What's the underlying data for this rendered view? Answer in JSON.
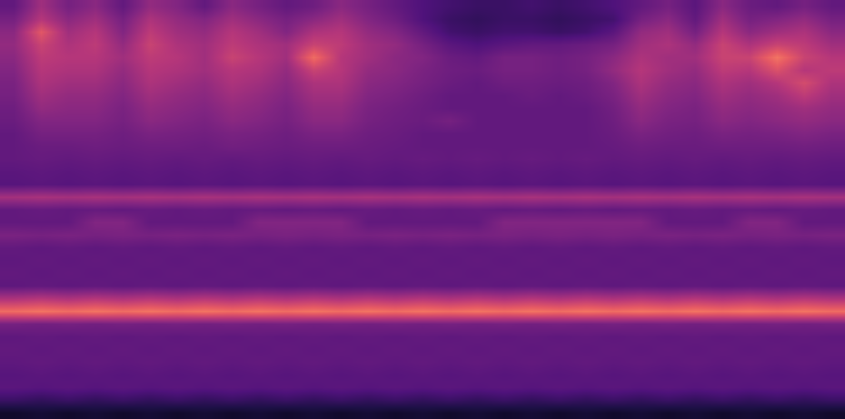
{
  "chart_data": {
    "type": "heatmap",
    "tick_labels": false,
    "zlim": [
      0,
      1
    ],
    "cells": [
      [
        0.3,
        0.45,
        0.35,
        0.4,
        0.3,
        0.42,
        0.38,
        0.3,
        0.4,
        0.35,
        0.3,
        0.33,
        0.4,
        0.35,
        0.3,
        0.25,
        0.22,
        0.2,
        0.2,
        0.22,
        0.2,
        0.22,
        0.25,
        0.3,
        0.35,
        0.28,
        0.4,
        0.32,
        0.3,
        0.35,
        0.3
      ],
      [
        0.35,
        0.5,
        0.4,
        0.45,
        0.35,
        0.48,
        0.42,
        0.38,
        0.45,
        0.4,
        0.35,
        0.4,
        0.45,
        0.38,
        0.33,
        0.25,
        0.2,
        0.18,
        0.2,
        0.2,
        0.18,
        0.2,
        0.22,
        0.35,
        0.4,
        0.3,
        0.45,
        0.35,
        0.38,
        0.42,
        0.35
      ],
      [
        0.4,
        0.62,
        0.45,
        0.5,
        0.38,
        0.52,
        0.45,
        0.42,
        0.5,
        0.45,
        0.38,
        0.48,
        0.5,
        0.42,
        0.38,
        0.3,
        0.22,
        0.2,
        0.22,
        0.22,
        0.2,
        0.22,
        0.28,
        0.42,
        0.45,
        0.35,
        0.5,
        0.4,
        0.45,
        0.48,
        0.4
      ],
      [
        0.42,
        0.55,
        0.48,
        0.52,
        0.42,
        0.55,
        0.48,
        0.45,
        0.52,
        0.48,
        0.45,
        0.55,
        0.52,
        0.45,
        0.42,
        0.35,
        0.28,
        0.25,
        0.28,
        0.3,
        0.3,
        0.32,
        0.35,
        0.45,
        0.48,
        0.42,
        0.55,
        0.48,
        0.55,
        0.52,
        0.45
      ],
      [
        0.4,
        0.52,
        0.5,
        0.5,
        0.45,
        0.52,
        0.5,
        0.45,
        0.55,
        0.5,
        0.45,
        0.68,
        0.5,
        0.45,
        0.4,
        0.38,
        0.32,
        0.3,
        0.35,
        0.35,
        0.33,
        0.35,
        0.4,
        0.48,
        0.45,
        0.45,
        0.55,
        0.55,
        0.7,
        0.55,
        0.5
      ],
      [
        0.38,
        0.5,
        0.48,
        0.48,
        0.42,
        0.5,
        0.48,
        0.45,
        0.5,
        0.48,
        0.42,
        0.55,
        0.5,
        0.42,
        0.4,
        0.36,
        0.33,
        0.32,
        0.35,
        0.35,
        0.33,
        0.35,
        0.42,
        0.5,
        0.45,
        0.42,
        0.52,
        0.5,
        0.6,
        0.5,
        0.52
      ],
      [
        0.36,
        0.48,
        0.45,
        0.45,
        0.4,
        0.48,
        0.45,
        0.42,
        0.48,
        0.45,
        0.4,
        0.48,
        0.48,
        0.4,
        0.38,
        0.35,
        0.32,
        0.3,
        0.33,
        0.33,
        0.32,
        0.33,
        0.38,
        0.48,
        0.42,
        0.4,
        0.48,
        0.45,
        0.5,
        0.58,
        0.48
      ],
      [
        0.35,
        0.45,
        0.42,
        0.42,
        0.38,
        0.45,
        0.42,
        0.4,
        0.45,
        0.42,
        0.38,
        0.45,
        0.45,
        0.38,
        0.36,
        0.33,
        0.3,
        0.3,
        0.3,
        0.32,
        0.3,
        0.32,
        0.36,
        0.45,
        0.4,
        0.38,
        0.45,
        0.42,
        0.45,
        0.52,
        0.45
      ],
      [
        0.33,
        0.42,
        0.4,
        0.4,
        0.36,
        0.42,
        0.4,
        0.38,
        0.42,
        0.4,
        0.36,
        0.42,
        0.42,
        0.36,
        0.34,
        0.32,
        0.3,
        0.3,
        0.3,
        0.3,
        0.3,
        0.3,
        0.34,
        0.42,
        0.38,
        0.36,
        0.42,
        0.4,
        0.42,
        0.45,
        0.42
      ],
      [
        0.32,
        0.38,
        0.38,
        0.38,
        0.35,
        0.4,
        0.38,
        0.36,
        0.4,
        0.38,
        0.35,
        0.4,
        0.4,
        0.35,
        0.33,
        0.32,
        0.35,
        0.3,
        0.3,
        0.3,
        0.3,
        0.3,
        0.33,
        0.4,
        0.36,
        0.35,
        0.4,
        0.38,
        0.4,
        0.42,
        0.4
      ],
      [
        0.3,
        0.35,
        0.35,
        0.35,
        0.33,
        0.36,
        0.35,
        0.34,
        0.36,
        0.35,
        0.33,
        0.36,
        0.36,
        0.33,
        0.32,
        0.3,
        0.3,
        0.3,
        0.3,
        0.3,
        0.3,
        0.3,
        0.32,
        0.36,
        0.34,
        0.33,
        0.36,
        0.35,
        0.36,
        0.38,
        0.36
      ],
      [
        0.3,
        0.32,
        0.32,
        0.33,
        0.32,
        0.33,
        0.33,
        0.32,
        0.34,
        0.33,
        0.32,
        0.33,
        0.33,
        0.32,
        0.31,
        0.3,
        0.3,
        0.3,
        0.3,
        0.3,
        0.3,
        0.3,
        0.31,
        0.33,
        0.32,
        0.32,
        0.33,
        0.33,
        0.33,
        0.34,
        0.33
      ],
      [
        0.3,
        0.31,
        0.3,
        0.31,
        0.3,
        0.31,
        0.3,
        0.31,
        0.3,
        0.31,
        0.3,
        0.31,
        0.3,
        0.31,
        0.3,
        0.31,
        0.3,
        0.31,
        0.3,
        0.31,
        0.3,
        0.31,
        0.3,
        0.31,
        0.3,
        0.31,
        0.3,
        0.31,
        0.3,
        0.31,
        0.3
      ],
      [
        0.28,
        0.29,
        0.28,
        0.29,
        0.28,
        0.29,
        0.28,
        0.29,
        0.28,
        0.29,
        0.28,
        0.29,
        0.28,
        0.29,
        0.28,
        0.29,
        0.28,
        0.29,
        0.28,
        0.29,
        0.28,
        0.29,
        0.28,
        0.29,
        0.28,
        0.29,
        0.28,
        0.29,
        0.28,
        0.29,
        0.28
      ],
      [
        0.27,
        0.28,
        0.27,
        0.28,
        0.27,
        0.28,
        0.27,
        0.28,
        0.27,
        0.28,
        0.27,
        0.28,
        0.27,
        0.28,
        0.27,
        0.28,
        0.27,
        0.28,
        0.27,
        0.28,
        0.27,
        0.28,
        0.27,
        0.28,
        0.27,
        0.28,
        0.27,
        0.28,
        0.27,
        0.28,
        0.27
      ],
      [
        0.46,
        0.47,
        0.46,
        0.47,
        0.46,
        0.47,
        0.46,
        0.47,
        0.46,
        0.47,
        0.46,
        0.47,
        0.46,
        0.47,
        0.46,
        0.47,
        0.46,
        0.47,
        0.46,
        0.47,
        0.46,
        0.47,
        0.46,
        0.47,
        0.46,
        0.47,
        0.46,
        0.47,
        0.46,
        0.47,
        0.46
      ],
      [
        0.3,
        0.31,
        0.3,
        0.31,
        0.3,
        0.31,
        0.3,
        0.31,
        0.3,
        0.31,
        0.3,
        0.31,
        0.3,
        0.31,
        0.3,
        0.31,
        0.3,
        0.31,
        0.3,
        0.31,
        0.3,
        0.31,
        0.3,
        0.31,
        0.3,
        0.31,
        0.3,
        0.31,
        0.3,
        0.31,
        0.3
      ],
      [
        0.3,
        0.3,
        0.3,
        0.38,
        0.38,
        0.3,
        0.3,
        0.3,
        0.3,
        0.38,
        0.38,
        0.38,
        0.38,
        0.3,
        0.3,
        0.3,
        0.3,
        0.3,
        0.38,
        0.38,
        0.38,
        0.38,
        0.38,
        0.38,
        0.3,
        0.3,
        0.3,
        0.38,
        0.38,
        0.3,
        0.3
      ],
      [
        0.36,
        0.35,
        0.36,
        0.35,
        0.36,
        0.35,
        0.36,
        0.35,
        0.36,
        0.35,
        0.36,
        0.35,
        0.36,
        0.35,
        0.36,
        0.35,
        0.36,
        0.35,
        0.36,
        0.35,
        0.36,
        0.35,
        0.36,
        0.35,
        0.36,
        0.35,
        0.36,
        0.35,
        0.36,
        0.35,
        0.36
      ],
      [
        0.3,
        0.29,
        0.3,
        0.29,
        0.3,
        0.29,
        0.3,
        0.29,
        0.3,
        0.29,
        0.3,
        0.29,
        0.3,
        0.29,
        0.3,
        0.29,
        0.3,
        0.29,
        0.3,
        0.29,
        0.3,
        0.29,
        0.3,
        0.29,
        0.3,
        0.29,
        0.3,
        0.29,
        0.3,
        0.29,
        0.3
      ],
      [
        0.29,
        0.3,
        0.29,
        0.3,
        0.29,
        0.3,
        0.29,
        0.3,
        0.29,
        0.3,
        0.29,
        0.3,
        0.29,
        0.3,
        0.29,
        0.3,
        0.29,
        0.3,
        0.29,
        0.3,
        0.29,
        0.3,
        0.29,
        0.3,
        0.29,
        0.3,
        0.29,
        0.3,
        0.29,
        0.3,
        0.29
      ],
      [
        0.3,
        0.29,
        0.3,
        0.29,
        0.3,
        0.29,
        0.3,
        0.29,
        0.3,
        0.29,
        0.3,
        0.29,
        0.3,
        0.29,
        0.3,
        0.29,
        0.3,
        0.29,
        0.3,
        0.29,
        0.3,
        0.29,
        0.3,
        0.29,
        0.3,
        0.29,
        0.3,
        0.29,
        0.3,
        0.29,
        0.3
      ],
      [
        0.29,
        0.3,
        0.29,
        0.3,
        0.29,
        0.3,
        0.29,
        0.3,
        0.29,
        0.3,
        0.29,
        0.3,
        0.29,
        0.3,
        0.29,
        0.3,
        0.29,
        0.3,
        0.29,
        0.3,
        0.29,
        0.3,
        0.29,
        0.3,
        0.29,
        0.3,
        0.29,
        0.3,
        0.29,
        0.3,
        0.29
      ],
      [
        0.48,
        0.5,
        0.48,
        0.5,
        0.48,
        0.5,
        0.48,
        0.5,
        0.48,
        0.5,
        0.48,
        0.5,
        0.48,
        0.5,
        0.48,
        0.5,
        0.48,
        0.5,
        0.48,
        0.5,
        0.48,
        0.5,
        0.48,
        0.5,
        0.48,
        0.5,
        0.48,
        0.5,
        0.48,
        0.5,
        0.48
      ],
      [
        0.68,
        0.7,
        0.68,
        0.7,
        0.68,
        0.7,
        0.68,
        0.7,
        0.68,
        0.7,
        0.68,
        0.7,
        0.68,
        0.7,
        0.68,
        0.7,
        0.68,
        0.7,
        0.68,
        0.7,
        0.68,
        0.7,
        0.68,
        0.7,
        0.68,
        0.7,
        0.68,
        0.7,
        0.68,
        0.7,
        0.68
      ],
      [
        0.35,
        0.34,
        0.35,
        0.34,
        0.35,
        0.34,
        0.35,
        0.34,
        0.35,
        0.34,
        0.35,
        0.34,
        0.35,
        0.34,
        0.35,
        0.34,
        0.35,
        0.34,
        0.35,
        0.34,
        0.35,
        0.34,
        0.35,
        0.34,
        0.35,
        0.34,
        0.35,
        0.34,
        0.35,
        0.34,
        0.35
      ],
      [
        0.29,
        0.3,
        0.29,
        0.3,
        0.29,
        0.3,
        0.29,
        0.3,
        0.29,
        0.3,
        0.29,
        0.3,
        0.29,
        0.3,
        0.29,
        0.3,
        0.29,
        0.3,
        0.29,
        0.3,
        0.29,
        0.3,
        0.29,
        0.3,
        0.29,
        0.3,
        0.29,
        0.3,
        0.29,
        0.3,
        0.29
      ],
      [
        0.3,
        0.29,
        0.3,
        0.29,
        0.3,
        0.29,
        0.3,
        0.29,
        0.3,
        0.29,
        0.3,
        0.29,
        0.3,
        0.29,
        0.3,
        0.29,
        0.3,
        0.29,
        0.3,
        0.29,
        0.3,
        0.29,
        0.3,
        0.29,
        0.3,
        0.29,
        0.3,
        0.29,
        0.3,
        0.29,
        0.3
      ],
      [
        0.29,
        0.3,
        0.29,
        0.3,
        0.29,
        0.3,
        0.29,
        0.3,
        0.29,
        0.3,
        0.29,
        0.3,
        0.29,
        0.3,
        0.29,
        0.3,
        0.29,
        0.3,
        0.29,
        0.3,
        0.29,
        0.3,
        0.29,
        0.3,
        0.29,
        0.3,
        0.29,
        0.3,
        0.29,
        0.3,
        0.29
      ],
      [
        0.27,
        0.28,
        0.27,
        0.28,
        0.27,
        0.28,
        0.27,
        0.28,
        0.27,
        0.28,
        0.27,
        0.28,
        0.27,
        0.28,
        0.27,
        0.28,
        0.27,
        0.28,
        0.27,
        0.28,
        0.27,
        0.28,
        0.27,
        0.28,
        0.27,
        0.28,
        0.27,
        0.28,
        0.27,
        0.28,
        0.27
      ],
      [
        0.28,
        0.27,
        0.28,
        0.27,
        0.28,
        0.27,
        0.28,
        0.27,
        0.28,
        0.27,
        0.28,
        0.27,
        0.28,
        0.27,
        0.28,
        0.27,
        0.28,
        0.27,
        0.28,
        0.27,
        0.28,
        0.27,
        0.28,
        0.27,
        0.28,
        0.27,
        0.28,
        0.27,
        0.28,
        0.27,
        0.28
      ],
      [
        0.2,
        0.18,
        0.2,
        0.18,
        0.2,
        0.18,
        0.2,
        0.18,
        0.2,
        0.18,
        0.2,
        0.18,
        0.2,
        0.18,
        0.2,
        0.18,
        0.2,
        0.18,
        0.2,
        0.18,
        0.2,
        0.18,
        0.2,
        0.18,
        0.2,
        0.18,
        0.2,
        0.18,
        0.2,
        0.18,
        0.2
      ],
      [
        0.08,
        0.1,
        0.08,
        0.1,
        0.08,
        0.1,
        0.08,
        0.1,
        0.08,
        0.1,
        0.08,
        0.1,
        0.08,
        0.1,
        0.08,
        0.1,
        0.08,
        0.1,
        0.08,
        0.1,
        0.08,
        0.1,
        0.08,
        0.1,
        0.08,
        0.1,
        0.08,
        0.1,
        0.08,
        0.1,
        0.08
      ]
    ]
  }
}
